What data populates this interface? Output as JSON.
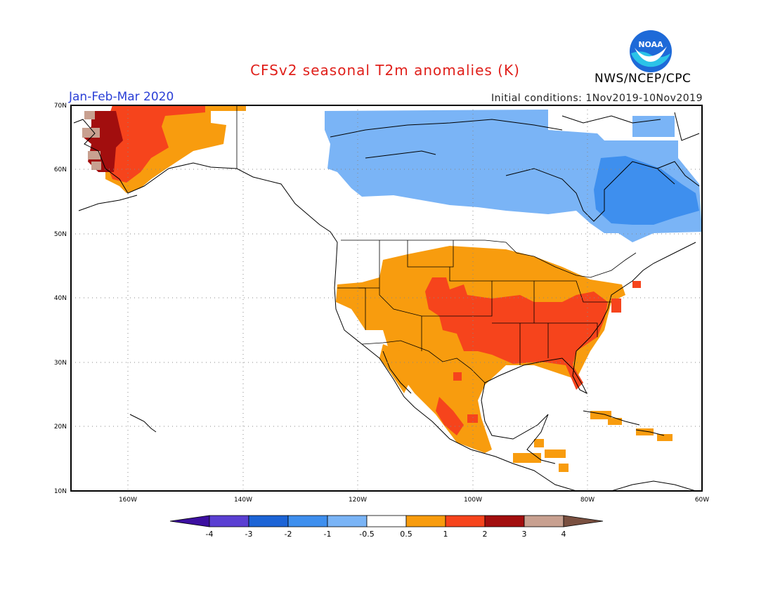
{
  "header": {
    "title": "CFSv2 seasonal T2m anomalies (K)",
    "agency": "NWS/NCEP/CPC",
    "period": "Jan-Feb-Mar 2020",
    "initial_conditions": "Initial conditions: 1Nov2019-10Nov2019",
    "logo_text": "NOAA"
  },
  "map": {
    "lon_range": [
      -172,
      -60
    ],
    "lat_range": [
      10,
      70
    ],
    "lat_labels": [
      "70N",
      "60N",
      "50N",
      "40N",
      "30N",
      "20N",
      "10N"
    ],
    "lon_labels": [
      "160W",
      "140W",
      "120W",
      "100W",
      "80W",
      "60W"
    ]
  },
  "colorbar": {
    "labels": [
      "-4",
      "-3",
      "-2",
      "-1",
      "-0.5",
      "0.5",
      "1",
      "2",
      "3",
      "4"
    ],
    "colors": [
      "#3c0fa0",
      "#5a3fd2",
      "#1c64d6",
      "#3e8fee",
      "#7ab4f6",
      "#ffffff",
      "#f89c0e",
      "#f6441c",
      "#a20e0e",
      "#c8a090",
      "#7a5040"
    ]
  }
}
